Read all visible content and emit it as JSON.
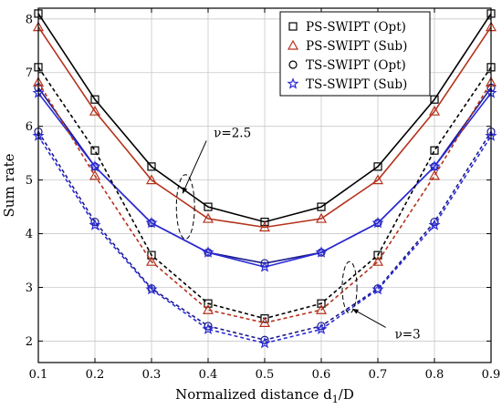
{
  "chart_data": {
    "type": "line",
    "title": "",
    "xlabel": "Normalized distance d",
    "xlabel_sub": "1",
    "xlabel_tail": "/D",
    "ylabel": "Sum rate",
    "xlim": [
      0.1,
      0.9
    ],
    "ylim": [
      1.6,
      8.2
    ],
    "x_ticks": [
      "0.1",
      "0.2",
      "0.3",
      "0.4",
      "0.5",
      "0.6",
      "0.7",
      "0.8",
      "0.9"
    ],
    "y_ticks": [
      "2",
      "3",
      "4",
      "5",
      "6",
      "7",
      "8"
    ],
    "grid": true,
    "legend_position": "top-right",
    "x": [
      0.1,
      0.2,
      0.3,
      0.4,
      0.5,
      0.6,
      0.7,
      0.8,
      0.9
    ],
    "series": [
      {
        "name": "PS-SWIPT (Opt)",
        "group": "ν=2.5",
        "color": "#000000",
        "dash": "solid",
        "marker": "square",
        "values": [
          8.1,
          6.5,
          5.25,
          4.5,
          4.22,
          4.5,
          5.25,
          6.5,
          8.1
        ]
      },
      {
        "name": "PS-SWIPT (Sub)",
        "group": "ν=2.5",
        "color": "#b5321c",
        "dash": "solid",
        "marker": "triangle",
        "values": [
          7.85,
          6.28,
          5.0,
          4.28,
          4.12,
          4.28,
          5.0,
          6.28,
          7.85
        ]
      },
      {
        "name": "TS-SWIPT (Opt)",
        "group": "ν=2.5",
        "color": "#1a1a8c",
        "dash": "solid",
        "marker": "circle",
        "values": [
          6.72,
          5.25,
          4.2,
          3.65,
          3.45,
          3.65,
          4.2,
          5.25,
          6.72
        ]
      },
      {
        "name": "TS-SWIPT (Sub)",
        "group": "ν=2.5",
        "color": "#2a2ad6",
        "dash": "solid",
        "marker": "star",
        "values": [
          6.62,
          5.25,
          4.2,
          3.65,
          3.38,
          3.65,
          4.2,
          5.25,
          6.62
        ]
      },
      {
        "name": "PS-SWIPT (Opt)",
        "group": "ν=3",
        "color": "#000000",
        "dash": "dashed",
        "marker": "square",
        "values": [
          7.1,
          5.55,
          3.6,
          2.7,
          2.42,
          2.7,
          3.6,
          5.55,
          7.1
        ]
      },
      {
        "name": "PS-SWIPT (Sub)",
        "group": "ν=3",
        "color": "#b5321c",
        "dash": "dashed",
        "marker": "triangle",
        "values": [
          6.82,
          5.08,
          3.48,
          2.58,
          2.34,
          2.58,
          3.48,
          5.08,
          6.82
        ]
      },
      {
        "name": "TS-SWIPT (Opt)",
        "group": "ν=3",
        "color": "#1a1a8c",
        "dash": "dashed",
        "marker": "circle",
        "values": [
          5.9,
          4.22,
          2.98,
          2.28,
          2.02,
          2.28,
          2.98,
          4.22,
          5.9
        ]
      },
      {
        "name": "TS-SWIPT (Sub)",
        "group": "ν=3",
        "color": "#2a2ad6",
        "dash": "dashed",
        "marker": "star",
        "values": [
          5.82,
          4.16,
          2.96,
          2.22,
          1.96,
          2.22,
          2.96,
          4.16,
          5.82
        ]
      }
    ],
    "legend": [
      {
        "label": "PS-SWIPT (Opt)",
        "marker": "square",
        "color": "#000000"
      },
      {
        "label": "PS-SWIPT (Sub)",
        "marker": "triangle",
        "color": "#b5321c"
      },
      {
        "label": "TS-SWIPT (Opt)",
        "marker": "circle",
        "color": "#000000"
      },
      {
        "label": "TS-SWIPT (Sub)",
        "marker": "star",
        "color": "#2a2ad6"
      }
    ],
    "annotations": [
      {
        "text": "ν=2.5",
        "ellipse_center": [
          0.36,
          4.5
        ],
        "ellipse_radius": [
          0.016,
          0.6
        ],
        "arrow_to": [
          0.355,
          4.75
        ],
        "text_at": [
          0.41,
          5.8
        ]
      },
      {
        "text": "ν=3",
        "ellipse_center": [
          0.65,
          3.0
        ],
        "ellipse_radius": [
          0.013,
          0.48
        ],
        "arrow_to": [
          0.655,
          2.6
        ],
        "text_at": [
          0.73,
          2.05
        ]
      }
    ]
  }
}
